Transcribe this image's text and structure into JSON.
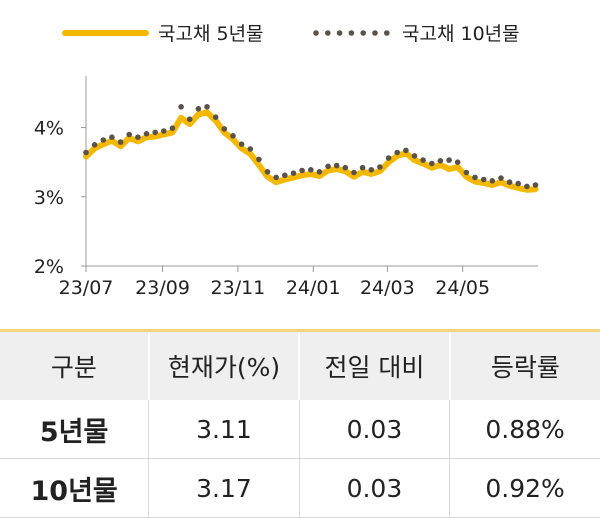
{
  "legend": {
    "series_5y": "국고채 5년물",
    "series_10y": "국고채 10년물"
  },
  "colors": {
    "series_5y": "#f5b800",
    "series_10y": "#5a5249",
    "axis": "#999999"
  },
  "chart_data": {
    "type": "line",
    "y_ticks": [
      "2%",
      "3%",
      "4%"
    ],
    "x_ticks": [
      "23/07",
      "23/09",
      "23/11",
      "24/01",
      "24/03",
      "24/05"
    ],
    "ylim": [
      2,
      4.6
    ],
    "xlim": [
      "2023-07-01",
      "2024-07-01"
    ],
    "grid": false,
    "legend_position": "top",
    "series": [
      {
        "name": "국고채 5년물",
        "style": "solid",
        "x": [
          "2023-07-01",
          "2023-07-08",
          "2023-07-15",
          "2023-07-22",
          "2023-07-29",
          "2023-08-05",
          "2023-08-12",
          "2023-08-19",
          "2023-08-26",
          "2023-09-02",
          "2023-09-09",
          "2023-09-16",
          "2023-09-23",
          "2023-09-30",
          "2023-10-07",
          "2023-10-14",
          "2023-10-21",
          "2023-10-28",
          "2023-11-04",
          "2023-11-11",
          "2023-11-18",
          "2023-11-25",
          "2023-12-02",
          "2023-12-09",
          "2023-12-16",
          "2023-12-23",
          "2023-12-30",
          "2024-01-06",
          "2024-01-13",
          "2024-01-20",
          "2024-01-27",
          "2024-02-03",
          "2024-02-10",
          "2024-02-17",
          "2024-02-24",
          "2024-03-02",
          "2024-03-09",
          "2024-03-16",
          "2024-03-23",
          "2024-03-30",
          "2024-04-06",
          "2024-04-13",
          "2024-04-20",
          "2024-04-27",
          "2024-05-04",
          "2024-05-11",
          "2024-05-18",
          "2024-05-25",
          "2024-06-01",
          "2024-06-08",
          "2024-06-15",
          "2024-06-22",
          "2024-06-29"
        ],
        "values": [
          3.58,
          3.7,
          3.76,
          3.81,
          3.73,
          3.85,
          3.8,
          3.86,
          3.87,
          3.9,
          3.93,
          4.14,
          4.05,
          4.19,
          4.22,
          4.1,
          3.93,
          3.83,
          3.7,
          3.62,
          3.46,
          3.29,
          3.21,
          3.25,
          3.28,
          3.31,
          3.33,
          3.3,
          3.38,
          3.4,
          3.37,
          3.29,
          3.36,
          3.33,
          3.37,
          3.5,
          3.59,
          3.63,
          3.53,
          3.48,
          3.42,
          3.46,
          3.4,
          3.43,
          3.29,
          3.22,
          3.2,
          3.17,
          3.21,
          3.16,
          3.13,
          3.1,
          3.11
        ]
      },
      {
        "name": "국고채 10년물",
        "style": "dotted",
        "x": [
          "2023-07-01",
          "2023-07-08",
          "2023-07-15",
          "2023-07-22",
          "2023-07-29",
          "2023-08-05",
          "2023-08-12",
          "2023-08-19",
          "2023-08-26",
          "2023-09-02",
          "2023-09-09",
          "2023-09-16",
          "2023-09-23",
          "2023-09-30",
          "2023-10-07",
          "2023-10-14",
          "2023-10-21",
          "2023-10-28",
          "2023-11-04",
          "2023-11-11",
          "2023-11-18",
          "2023-11-25",
          "2023-12-02",
          "2023-12-09",
          "2023-12-16",
          "2023-12-23",
          "2023-12-30",
          "2024-01-06",
          "2024-01-13",
          "2024-01-20",
          "2024-01-27",
          "2024-02-03",
          "2024-02-10",
          "2024-02-17",
          "2024-02-24",
          "2024-03-02",
          "2024-03-09",
          "2024-03-16",
          "2024-03-23",
          "2024-03-30",
          "2024-04-06",
          "2024-04-13",
          "2024-04-20",
          "2024-04-27",
          "2024-05-04",
          "2024-05-11",
          "2024-05-18",
          "2024-05-25",
          "2024-06-01",
          "2024-06-08",
          "2024-06-15",
          "2024-06-22",
          "2024-06-29"
        ],
        "values": [
          3.64,
          3.75,
          3.82,
          3.86,
          3.79,
          3.9,
          3.86,
          3.91,
          3.93,
          3.95,
          3.99,
          4.3,
          4.12,
          4.27,
          4.3,
          4.15,
          3.98,
          3.88,
          3.76,
          3.69,
          3.54,
          3.36,
          3.28,
          3.31,
          3.34,
          3.38,
          3.39,
          3.36,
          3.44,
          3.45,
          3.42,
          3.35,
          3.42,
          3.39,
          3.43,
          3.56,
          3.64,
          3.67,
          3.59,
          3.53,
          3.48,
          3.52,
          3.53,
          3.5,
          3.35,
          3.28,
          3.25,
          3.23,
          3.27,
          3.21,
          3.19,
          3.15,
          3.17
        ]
      }
    ]
  },
  "table": {
    "headers": [
      "구분",
      "현재가(%)",
      "전일 대비",
      "등락률"
    ],
    "rows": [
      [
        "5년물",
        "3.11",
        "0.03",
        "0.88%"
      ],
      [
        "10년물",
        "3.17",
        "0.03",
        "0.92%"
      ]
    ]
  }
}
